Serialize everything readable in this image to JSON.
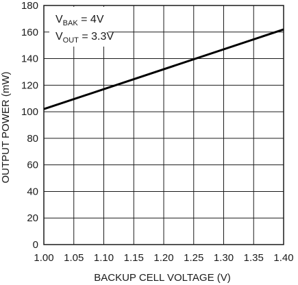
{
  "chart_data": {
    "type": "line",
    "title": "",
    "xlabel": "BACKUP CELL VOLTAGE (V)",
    "ylabel": "OUTPUT POWER (mW)",
    "xlim": [
      1.0,
      1.4
    ],
    "ylim": [
      0,
      180
    ],
    "x_ticks": [
      "1.00",
      "1.05",
      "1.10",
      "1.15",
      "1.20",
      "1.25",
      "1.30",
      "1.35",
      "1.40"
    ],
    "y_ticks": [
      "0",
      "20",
      "40",
      "60",
      "80",
      "100",
      "120",
      "140",
      "160",
      "180"
    ],
    "grid": true,
    "series": [
      {
        "x": [
          1.0,
          1.4
        ],
        "y": [
          102,
          162
        ],
        "color": "#000000"
      }
    ],
    "annotations": [
      {
        "main": "V",
        "sub": "BAK",
        "rest": " = 4V"
      },
      {
        "main": "V",
        "sub": "OUT",
        "rest": " = 3.3V"
      }
    ]
  }
}
